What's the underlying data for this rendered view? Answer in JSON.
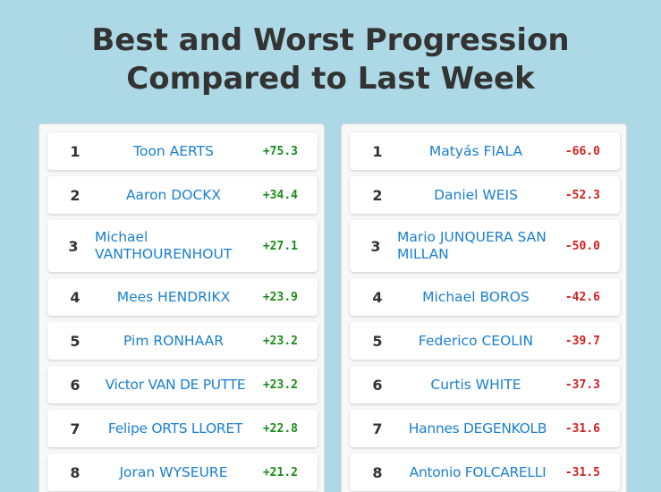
{
  "title_line1": "Best and Worst Progression",
  "title_line2": "Compared to Last Week",
  "best": [
    {
      "rank": "1",
      "name": "Toon AERTS",
      "value": "+75.3"
    },
    {
      "rank": "2",
      "name": "Aaron DOCKX",
      "value": "+34.4"
    },
    {
      "rank": "3",
      "name": "Michael VANTHOURENHOUT",
      "value": "+27.1"
    },
    {
      "rank": "4",
      "name": "Mees HENDRIKX",
      "value": "+23.9"
    },
    {
      "rank": "5",
      "name": "Pim RONHAAR",
      "value": "+23.2"
    },
    {
      "rank": "6",
      "name": "Victor VAN DE PUTTE",
      "value": "+23.2"
    },
    {
      "rank": "7",
      "name": "Felipe ORTS LLORET",
      "value": "+22.8"
    },
    {
      "rank": "8",
      "name": "Joran WYSEURE",
      "value": "+21.2"
    }
  ],
  "worst": [
    {
      "rank": "1",
      "name": "Matyás FIALA",
      "value": "-66.0"
    },
    {
      "rank": "2",
      "name": "Daniel WEIS",
      "value": "-52.3"
    },
    {
      "rank": "3",
      "name": "Mario JUNQUERA SAN MILLAN",
      "value": "-50.0"
    },
    {
      "rank": "4",
      "name": "Michael BOROS",
      "value": "-42.6"
    },
    {
      "rank": "5",
      "name": "Federico CEOLIN",
      "value": "-39.7"
    },
    {
      "rank": "6",
      "name": "Curtis WHITE",
      "value": "-37.3"
    },
    {
      "rank": "7",
      "name": "Hannes DEGENKOLB",
      "value": "-31.6"
    },
    {
      "rank": "8",
      "name": "Antonio FOLCARELLI",
      "value": "-31.5"
    }
  ],
  "colors": {
    "background": "#add8e6",
    "name_link": "#1a7fd0",
    "positive": "#1a8a1a",
    "negative": "#d42020"
  }
}
